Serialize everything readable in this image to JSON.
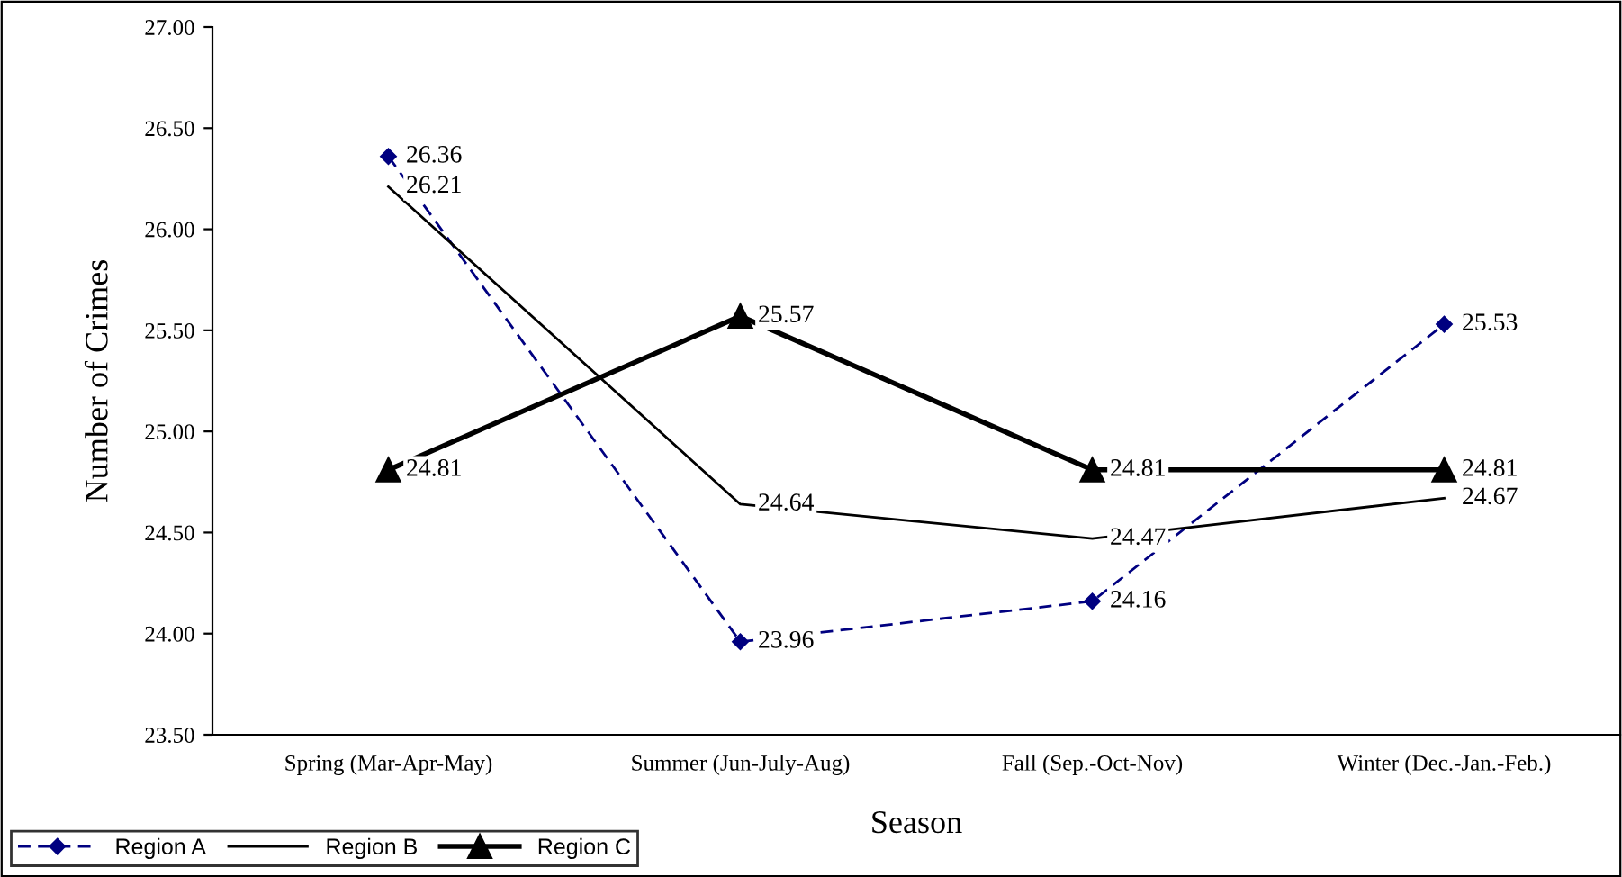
{
  "chart_data": {
    "type": "line",
    "xlabel": "Season",
    "ylabel": "Number of Crimes",
    "categories": [
      "Spring (Mar-Apr-May)",
      "Summer (Jun-July-Aug)",
      "Fall (Sep.-Oct-Nov)",
      "Winter (Dec.-Jan.-Feb.)"
    ],
    "series": [
      {
        "name": "Region A",
        "color": "#000080",
        "values": [
          26.36,
          23.96,
          24.16,
          25.53
        ],
        "marker": "diamond",
        "line_style": "dashed"
      },
      {
        "name": "Region B",
        "color": "#000000",
        "values": [
          26.21,
          24.64,
          24.47,
          24.67
        ],
        "marker": "none",
        "line_style": "solid"
      },
      {
        "name": "Region C",
        "color": "#000000",
        "values": [
          24.81,
          25.57,
          24.81,
          24.81
        ],
        "marker": "triangle",
        "line_style": "solid"
      }
    ],
    "ylim": [
      23.5,
      27.0
    ],
    "yticks": [
      {
        "value": 23.5,
        "label": "23.50"
      },
      {
        "value": 24.0,
        "label": "24.00"
      },
      {
        "value": 24.5,
        "label": "24.50"
      },
      {
        "value": 25.0,
        "label": "25.00"
      },
      {
        "value": 25.5,
        "label": "25.50"
      },
      {
        "value": 26.0,
        "label": "26.00"
      },
      {
        "value": 26.5,
        "label": "26.50"
      },
      {
        "value": 27.0,
        "label": "27.00"
      }
    ],
    "data_labels": true,
    "legend": "bottom left",
    "grid": false
  }
}
